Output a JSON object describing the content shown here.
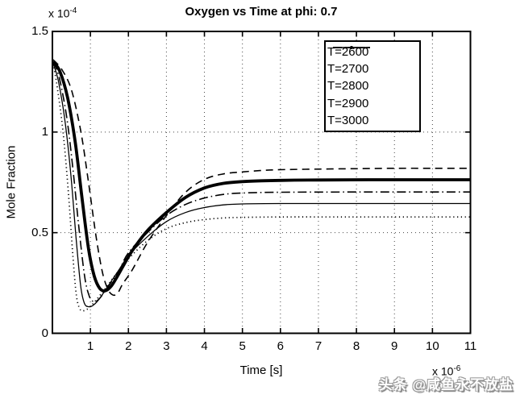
{
  "colors": {
    "foreground": "#000000",
    "background": "#ffffff",
    "grid": "#444444",
    "watermark_fill": "#ffffff",
    "watermark_shadow": "#8a8a8a"
  },
  "watermark": {
    "text": "头条 @咸鱼永不放盐"
  },
  "chart_data": {
    "type": "line",
    "title": "Oxygen vs Time at phi: 0.7",
    "xlabel": "Time [s]",
    "ylabel": "Mole Fraction",
    "x_multiplier": {
      "base": "x 10",
      "exp": "-6"
    },
    "y_multiplier": {
      "base": "x 10",
      "exp": "-4"
    },
    "xlim": [
      0,
      11
    ],
    "ylim": [
      0,
      1.5
    ],
    "x_ticks": [
      1,
      2,
      3,
      4,
      5,
      6,
      7,
      8,
      9,
      10,
      11
    ],
    "y_ticks": [
      {
        "v": 0,
        "label": "0"
      },
      {
        "v": 0.5,
        "label": "0.5"
      },
      {
        "v": 1,
        "label": "1"
      },
      {
        "v": 1.5,
        "label": "1.5"
      }
    ],
    "grid": true,
    "legend_position": "top-right",
    "series": [
      {
        "name": "t2600",
        "label": "T=2600",
        "line_style": "dashed",
        "line_width": 1.6,
        "points": [
          [
            0.02,
            1.36
          ],
          [
            0.25,
            1.31
          ],
          [
            0.5,
            1.21
          ],
          [
            0.75,
            1.0
          ],
          [
            0.95,
            0.75
          ],
          [
            1.15,
            0.48
          ],
          [
            1.32,
            0.3
          ],
          [
            1.47,
            0.215
          ],
          [
            1.6,
            0.19
          ],
          [
            1.72,
            0.2
          ],
          [
            1.85,
            0.245
          ],
          [
            2.1,
            0.315
          ],
          [
            2.5,
            0.45
          ],
          [
            3.0,
            0.585
          ],
          [
            3.5,
            0.7
          ],
          [
            4.0,
            0.765
          ],
          [
            4.5,
            0.792
          ],
          [
            5.0,
            0.802
          ],
          [
            5.5,
            0.809
          ],
          [
            6.0,
            0.813
          ],
          [
            7.0,
            0.816
          ],
          [
            8.0,
            0.818
          ],
          [
            9.0,
            0.82
          ],
          [
            10.0,
            0.82
          ],
          [
            11.0,
            0.82
          ]
        ]
      },
      {
        "name": "t2700",
        "label": "T=2700",
        "line_style": "point",
        "line_width": 3.8,
        "points": [
          [
            0.02,
            1.35
          ],
          [
            0.2,
            1.3
          ],
          [
            0.4,
            1.17
          ],
          [
            0.6,
            0.95
          ],
          [
            0.78,
            0.67
          ],
          [
            0.95,
            0.42
          ],
          [
            1.1,
            0.285
          ],
          [
            1.25,
            0.222
          ],
          [
            1.4,
            0.212
          ],
          [
            1.55,
            0.235
          ],
          [
            1.7,
            0.28
          ],
          [
            1.85,
            0.33
          ],
          [
            2.1,
            0.41
          ],
          [
            2.5,
            0.51
          ],
          [
            3.0,
            0.6
          ],
          [
            3.5,
            0.675
          ],
          [
            4.0,
            0.722
          ],
          [
            4.5,
            0.745
          ],
          [
            5.0,
            0.754
          ],
          [
            5.5,
            0.758
          ],
          [
            6.0,
            0.76
          ],
          [
            7.0,
            0.762
          ],
          [
            9.0,
            0.763
          ],
          [
            11.0,
            0.763
          ]
        ]
      },
      {
        "name": "t2800",
        "label": "T=2800",
        "line_style": "dash-dot",
        "line_width": 1.6,
        "points": [
          [
            0.02,
            1.35
          ],
          [
            0.18,
            1.27
          ],
          [
            0.38,
            1.07
          ],
          [
            0.55,
            0.8
          ],
          [
            0.7,
            0.52
          ],
          [
            0.85,
            0.28
          ],
          [
            0.97,
            0.185
          ],
          [
            1.08,
            0.158
          ],
          [
            1.2,
            0.165
          ],
          [
            1.35,
            0.2
          ],
          [
            1.55,
            0.255
          ],
          [
            1.75,
            0.31
          ],
          [
            2.0,
            0.4
          ],
          [
            2.5,
            0.5
          ],
          [
            3.0,
            0.585
          ],
          [
            3.5,
            0.64
          ],
          [
            4.0,
            0.672
          ],
          [
            4.5,
            0.69
          ],
          [
            5.0,
            0.697
          ],
          [
            6.0,
            0.701
          ],
          [
            8.0,
            0.702
          ],
          [
            11.0,
            0.702
          ]
        ]
      },
      {
        "name": "t2900",
        "label": "T=2900",
        "line_style": "solid",
        "line_width": 1.3,
        "points": [
          [
            0.02,
            1.34
          ],
          [
            0.15,
            1.26
          ],
          [
            0.32,
            1.07
          ],
          [
            0.48,
            0.8
          ],
          [
            0.62,
            0.48
          ],
          [
            0.74,
            0.24
          ],
          [
            0.84,
            0.15
          ],
          [
            0.95,
            0.132
          ],
          [
            1.08,
            0.14
          ],
          [
            1.25,
            0.175
          ],
          [
            1.5,
            0.245
          ],
          [
            1.75,
            0.315
          ],
          [
            2.0,
            0.385
          ],
          [
            2.5,
            0.48
          ],
          [
            3.0,
            0.555
          ],
          [
            3.5,
            0.6
          ],
          [
            4.0,
            0.625
          ],
          [
            4.5,
            0.638
          ],
          [
            5.0,
            0.643
          ],
          [
            6.0,
            0.645
          ],
          [
            8.0,
            0.645
          ],
          [
            11.0,
            0.645
          ]
        ]
      },
      {
        "name": "t3000",
        "label": "T=3000",
        "line_style": "dotted",
        "line_width": 1.7,
        "points": [
          [
            0.02,
            1.34
          ],
          [
            0.13,
            1.22
          ],
          [
            0.28,
            1.0
          ],
          [
            0.42,
            0.7
          ],
          [
            0.54,
            0.38
          ],
          [
            0.63,
            0.19
          ],
          [
            0.72,
            0.122
          ],
          [
            0.82,
            0.112
          ],
          [
            0.95,
            0.125
          ],
          [
            1.15,
            0.165
          ],
          [
            1.4,
            0.225
          ],
          [
            1.7,
            0.3
          ],
          [
            2.0,
            0.37
          ],
          [
            2.5,
            0.46
          ],
          [
            3.0,
            0.52
          ],
          [
            3.5,
            0.55
          ],
          [
            4.0,
            0.565
          ],
          [
            4.5,
            0.573
          ],
          [
            5.0,
            0.576
          ],
          [
            6.0,
            0.578
          ],
          [
            8.0,
            0.578
          ],
          [
            11.0,
            0.578
          ]
        ]
      }
    ]
  }
}
